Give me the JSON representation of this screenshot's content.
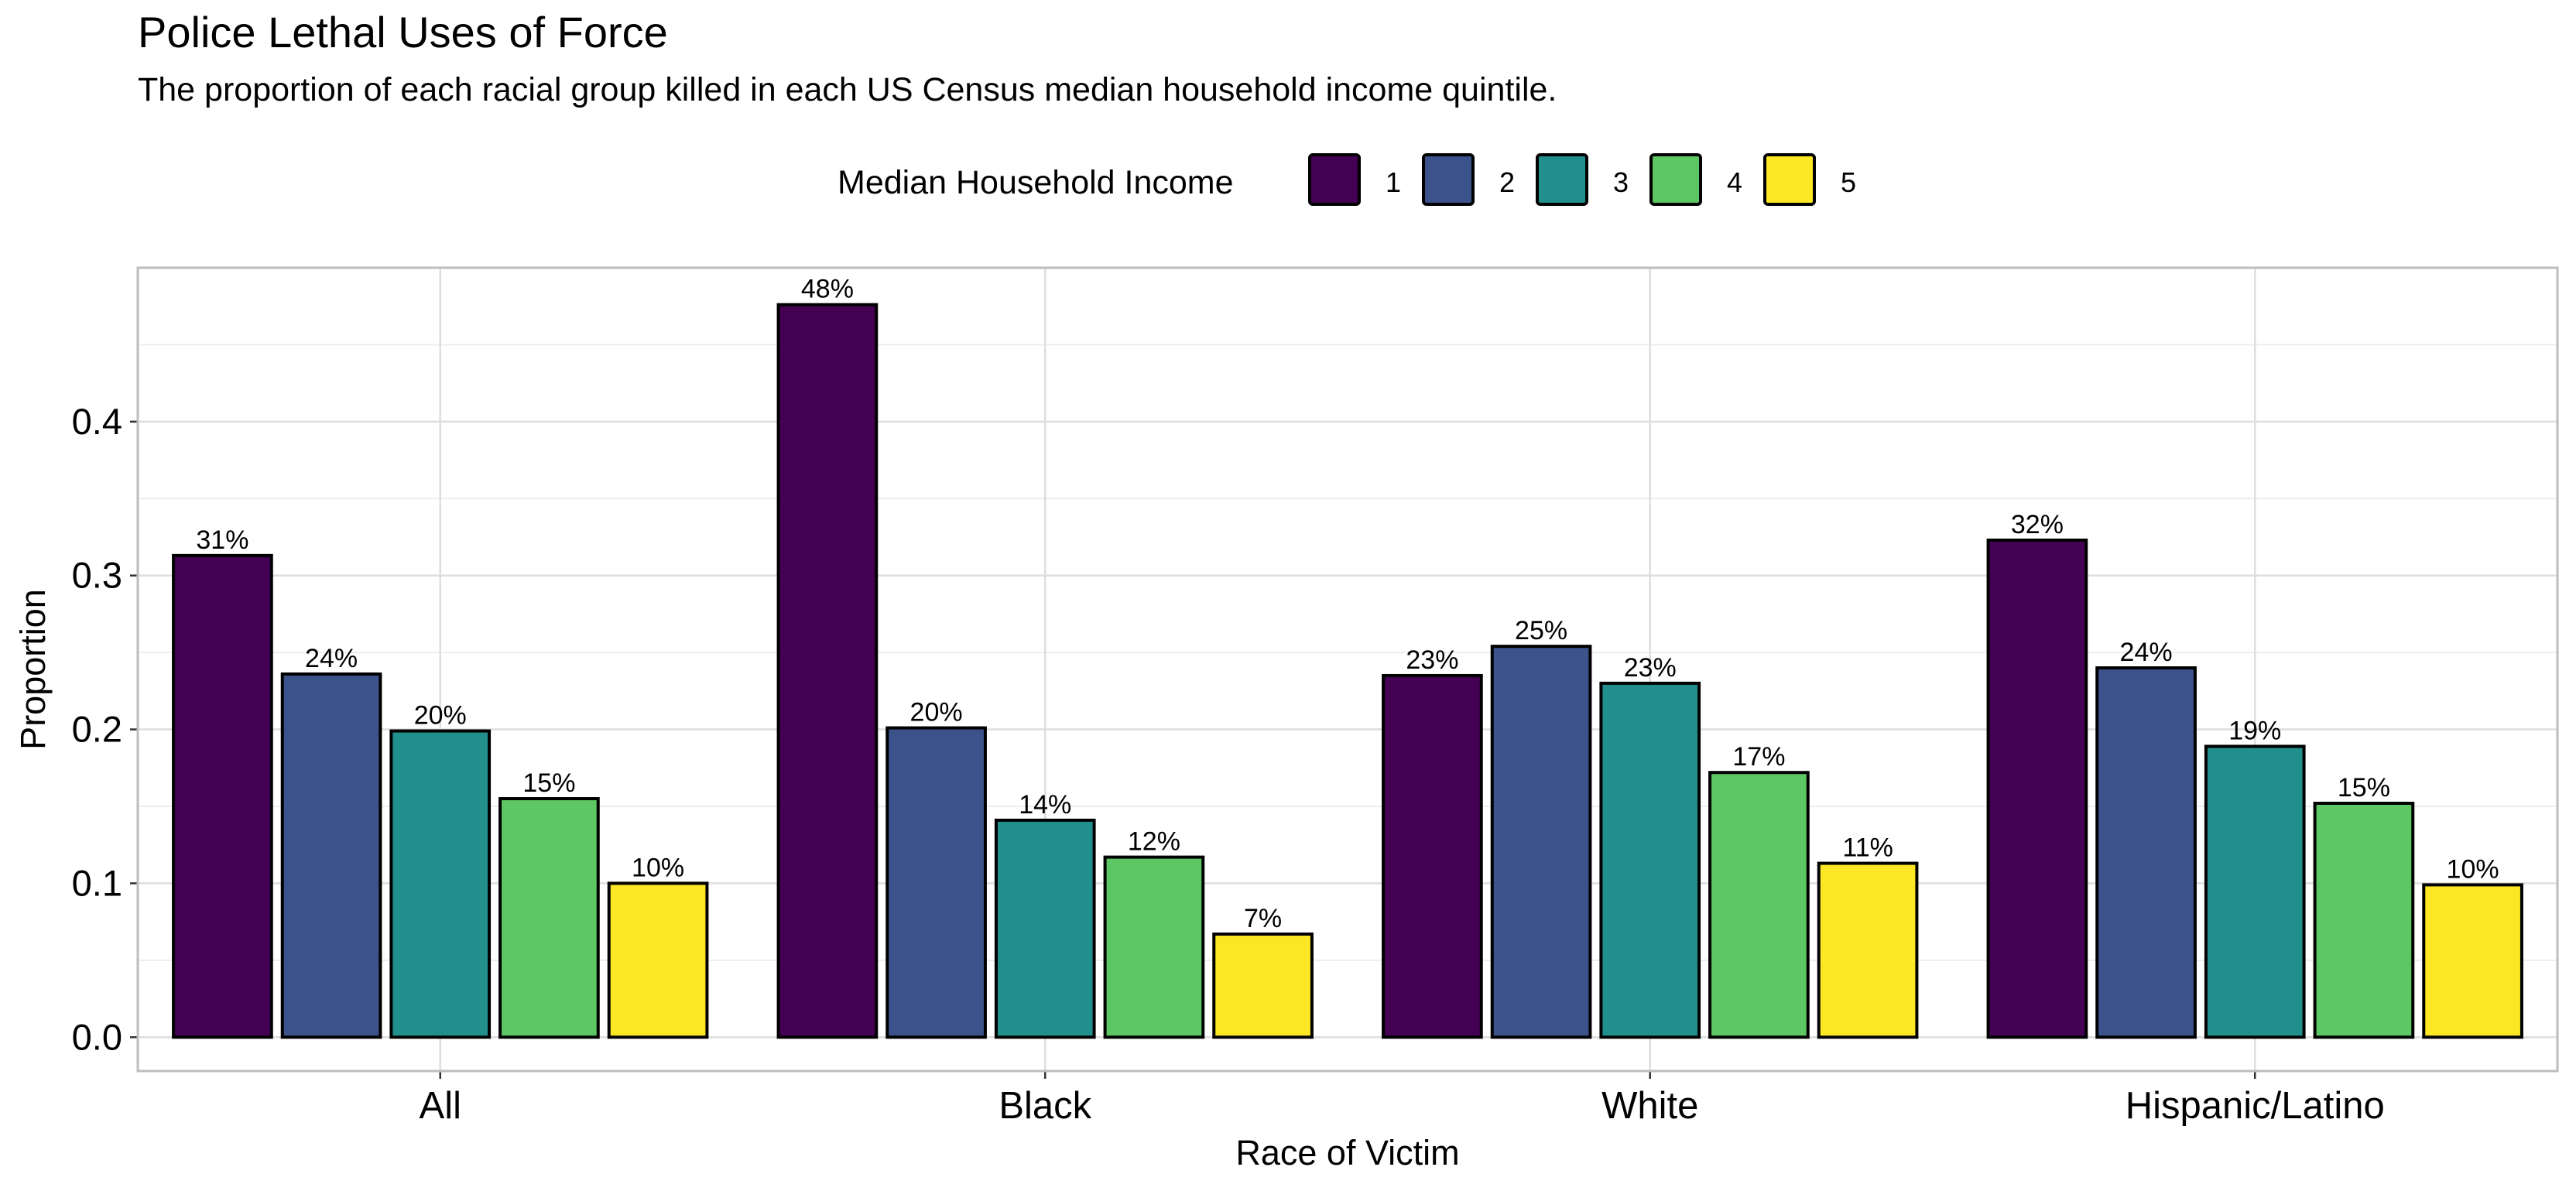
{
  "chart_data": {
    "type": "bar",
    "title": "Police Lethal Uses of Force",
    "subtitle": "The proportion of each racial group killed in each US Census median household income quintile.",
    "xlabel": "Race of Victim",
    "ylabel": "Proportion",
    "categories": [
      "All",
      "Black",
      "White",
      "Hispanic/Latino"
    ],
    "legend": {
      "title": "Median Household Income",
      "position": "top"
    },
    "series": [
      {
        "name": "1",
        "color": "#440154",
        "values": [
          0.313,
          0.476,
          0.235,
          0.323
        ],
        "labels": [
          "31%",
          "48%",
          "23%",
          "32%"
        ]
      },
      {
        "name": "2",
        "color": "#3B528B",
        "values": [
          0.236,
          0.201,
          0.254,
          0.24
        ],
        "labels": [
          "24%",
          "20%",
          "25%",
          "24%"
        ]
      },
      {
        "name": "3",
        "color": "#21908C",
        "values": [
          0.199,
          0.141,
          0.23,
          0.189
        ],
        "labels": [
          "20%",
          "14%",
          "23%",
          "19%"
        ]
      },
      {
        "name": "4",
        "color": "#5DC863",
        "values": [
          0.155,
          0.117,
          0.172,
          0.152
        ],
        "labels": [
          "15%",
          "12%",
          "17%",
          "15%"
        ]
      },
      {
        "name": "5",
        "color": "#FDE725",
        "values": [
          0.1,
          0.067,
          0.113,
          0.099
        ],
        "labels": [
          "10%",
          "7%",
          "11%",
          "10%"
        ]
      }
    ],
    "ylim": [
      -0.022,
      0.5
    ],
    "yticks": [
      0.0,
      0.1,
      0.2,
      0.3,
      0.4
    ],
    "ytick_labels": [
      "0.0",
      "0.1",
      "0.2",
      "0.3",
      "0.4"
    ],
    "grid": true,
    "panel_border": true
  }
}
